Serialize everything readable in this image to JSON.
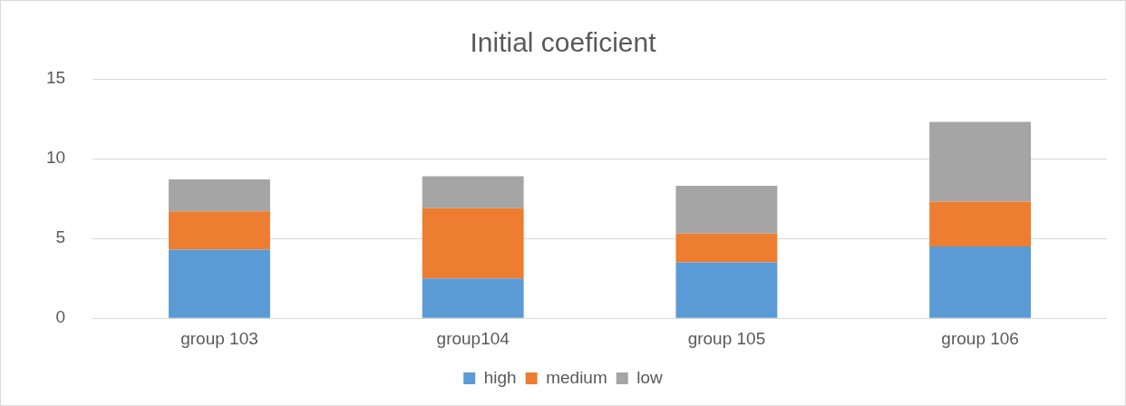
{
  "chart_data": {
    "type": "bar",
    "title": "Initial coeficient",
    "stacked": true,
    "categories": [
      "group 103",
      "group104",
      "group 105",
      "group 106"
    ],
    "series": [
      {
        "name": "high",
        "color": "#5b9bd5",
        "values": [
          4.3,
          2.5,
          3.5,
          4.5
        ]
      },
      {
        "name": "medium",
        "color": "#ed7d31",
        "values": [
          2.4,
          4.4,
          1.8,
          2.8
        ]
      },
      {
        "name": "low",
        "color": "#a5a5a5",
        "values": [
          2.0,
          2.0,
          3.0,
          5.0
        ]
      }
    ],
    "ylim": [
      0,
      15
    ],
    "yticks": [
      0,
      5,
      10,
      15
    ],
    "grid": "y",
    "legend": "bottom"
  }
}
